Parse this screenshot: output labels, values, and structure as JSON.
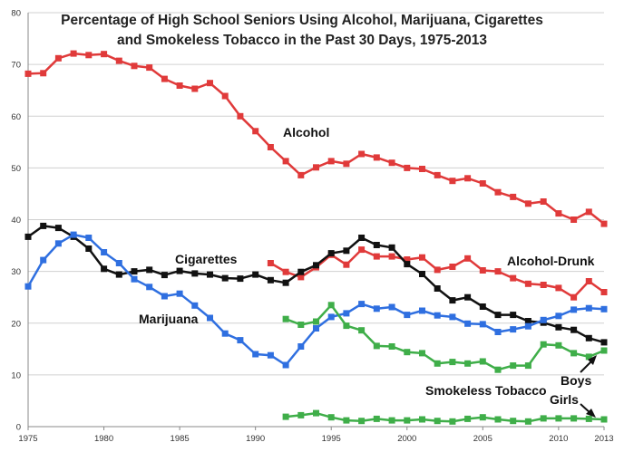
{
  "chart_data": {
    "type": "line",
    "title": [
      "Percentage of High School Seniors Using Alcohol, Marijuana, Cigarettes",
      "and Smokeless Tobacco in the Past 30 Days, 1975-2013"
    ],
    "xlabel": "",
    "ylabel": "",
    "xlim": [
      1975,
      2013
    ],
    "ylim": [
      0,
      80
    ],
    "x_ticks": [
      1975,
      1980,
      1985,
      1990,
      1995,
      2000,
      2005,
      2010,
      2013
    ],
    "y_ticks": [
      0,
      10,
      20,
      30,
      40,
      50,
      60,
      70,
      80
    ],
    "grid": true,
    "series": [
      {
        "name": "Alcohol",
        "color": "#e03a3a",
        "x": [
          1975,
          1976,
          1977,
          1978,
          1979,
          1980,
          1981,
          1982,
          1983,
          1984,
          1985,
          1986,
          1987,
          1988,
          1989,
          1990,
          1991,
          1992,
          1993,
          1994,
          1995,
          1996,
          1997,
          1998,
          1999,
          2000,
          2001,
          2002,
          2003,
          2004,
          2005,
          2006,
          2007,
          2008,
          2009,
          2010,
          2011,
          2012,
          2013
        ],
        "values": [
          68.2,
          68.3,
          71.2,
          72.1,
          71.8,
          72.0,
          70.7,
          69.7,
          69.4,
          67.2,
          65.9,
          65.3,
          66.4,
          63.9,
          60.0,
          57.1,
          54.0,
          51.3,
          48.6,
          50.1,
          51.3,
          50.8,
          52.7,
          52.0,
          51.0,
          50.0,
          49.8,
          48.6,
          47.5,
          48.0,
          47.0,
          45.3,
          44.4,
          43.1,
          43.5,
          41.2,
          40.0,
          41.5,
          39.2
        ]
      },
      {
        "name": "Alcohol-Drunk",
        "color": "#e03a3a",
        "x": [
          1991,
          1992,
          1993,
          1994,
          1995,
          1996,
          1997,
          1998,
          1999,
          2000,
          2001,
          2002,
          2003,
          2004,
          2005,
          2006,
          2007,
          2008,
          2009,
          2010,
          2011,
          2012,
          2013
        ],
        "values": [
          31.6,
          29.9,
          28.9,
          30.8,
          33.2,
          31.3,
          34.2,
          32.9,
          32.9,
          32.3,
          32.7,
          30.3,
          30.9,
          32.5,
          30.2,
          30.0,
          28.7,
          27.6,
          27.4,
          26.8,
          25.0,
          28.1,
          26.0
        ]
      },
      {
        "name": "Cigarettes",
        "color": "#111111",
        "x": [
          1975,
          1976,
          1977,
          1978,
          1979,
          1980,
          1981,
          1982,
          1983,
          1984,
          1985,
          1986,
          1987,
          1988,
          1989,
          1990,
          1991,
          1992,
          1993,
          1994,
          1995,
          1996,
          1997,
          1998,
          1999,
          2000,
          2001,
          2002,
          2003,
          2004,
          2005,
          2006,
          2007,
          2008,
          2009,
          2010,
          2011,
          2012,
          2013
        ],
        "values": [
          36.7,
          38.8,
          38.4,
          36.7,
          34.4,
          30.5,
          29.4,
          30.0,
          30.3,
          29.3,
          30.1,
          29.6,
          29.4,
          28.7,
          28.6,
          29.4,
          28.3,
          27.8,
          29.9,
          31.2,
          33.5,
          34.0,
          36.5,
          35.1,
          34.6,
          31.4,
          29.5,
          26.7,
          24.4,
          25.0,
          23.2,
          21.6,
          21.6,
          20.4,
          20.1,
          19.2,
          18.7,
          17.1,
          16.3
        ]
      },
      {
        "name": "Marijuana",
        "color": "#2f6fe0",
        "x": [
          1975,
          1976,
          1977,
          1978,
          1979,
          1980,
          1981,
          1982,
          1983,
          1984,
          1985,
          1986,
          1987,
          1988,
          1989,
          1990,
          1991,
          1992,
          1993,
          1994,
          1995,
          1996,
          1997,
          1998,
          1999,
          2000,
          2001,
          2002,
          2003,
          2004,
          2005,
          2006,
          2007,
          2008,
          2009,
          2010,
          2011,
          2012,
          2013
        ],
        "values": [
          27.1,
          32.2,
          35.4,
          37.1,
          36.5,
          33.7,
          31.6,
          28.5,
          27.0,
          25.2,
          25.7,
          23.4,
          21.0,
          18.0,
          16.7,
          14.0,
          13.8,
          11.9,
          15.5,
          19.0,
          21.2,
          21.9,
          23.7,
          22.8,
          23.1,
          21.6,
          22.4,
          21.5,
          21.2,
          19.9,
          19.8,
          18.3,
          18.8,
          19.4,
          20.6,
          21.4,
          22.6,
          22.9,
          22.7
        ]
      },
      {
        "name": "Smokeless Tobacco Boys",
        "color": "#3fae49",
        "x": [
          1992,
          1993,
          1994,
          1995,
          1996,
          1997,
          1998,
          1999,
          2000,
          2001,
          2002,
          2003,
          2004,
          2005,
          2006,
          2007,
          2008,
          2009,
          2010,
          2011,
          2012,
          2013
        ],
        "values": [
          20.8,
          19.7,
          20.3,
          23.5,
          19.5,
          18.6,
          15.6,
          15.5,
          14.4,
          14.2,
          12.2,
          12.5,
          12.2,
          12.6,
          11.0,
          11.8,
          11.8,
          15.9,
          15.7,
          14.2,
          13.5,
          14.7
        ]
      },
      {
        "name": "Smokeless Tobacco Girls",
        "color": "#3fae49",
        "x": [
          1992,
          1993,
          1994,
          1995,
          1996,
          1997,
          1998,
          1999,
          2000,
          2001,
          2002,
          2003,
          2004,
          2005,
          2006,
          2007,
          2008,
          2009,
          2010,
          2011,
          2012,
          2013
        ],
        "values": [
          1.9,
          2.2,
          2.6,
          1.8,
          1.2,
          1.1,
          1.5,
          1.2,
          1.2,
          1.4,
          1.1,
          1.0,
          1.5,
          1.8,
          1.4,
          1.1,
          1.0,
          1.6,
          1.6,
          1.6,
          1.5,
          1.4
        ]
      }
    ],
    "annotations": [
      "Alcohol",
      "Alcohol-Drunk",
      "Cigarettes",
      "Marijuana",
      "Smokeless Tobacco",
      "Boys",
      "Girls"
    ]
  }
}
